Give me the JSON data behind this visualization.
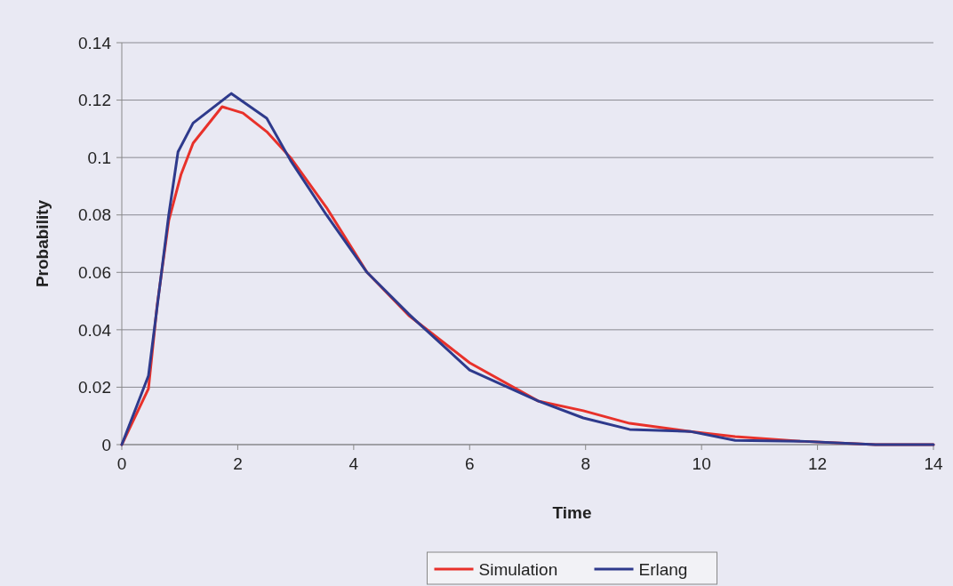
{
  "chart_data": {
    "type": "line",
    "xlabel": "Time",
    "ylabel": "Probability",
    "xlim": [
      0,
      14
    ],
    "ylim": [
      0,
      0.14
    ],
    "xticks": [
      0,
      2,
      4,
      6,
      8,
      10,
      12,
      14
    ],
    "yticks": [
      0,
      0.02,
      0.04,
      0.06,
      0.08,
      0.1,
      0.12,
      0.14
    ],
    "grid": "y",
    "legend": "bottom",
    "marker": "none",
    "line_style": "solid",
    "series": [
      {
        "name": "Simulation",
        "color": "#e8312a",
        "x": [
          0,
          0.46,
          0.61,
          0.81,
          1.02,
          1.23,
          1.73,
          2.09,
          2.5,
          2.91,
          3.53,
          4.23,
          4.95,
          6.0,
          7.18,
          7.96,
          8.76,
          9.8,
          10.58,
          11.7,
          13,
          14
        ],
        "values": [
          0,
          0.0195,
          0.0486,
          0.078,
          0.094,
          0.105,
          0.1177,
          0.1155,
          0.109,
          0.1,
          0.0826,
          0.06,
          0.045,
          0.0285,
          0.0152,
          0.0118,
          0.0074,
          0.0046,
          0.0028,
          0.0012,
          0,
          0
        ]
      },
      {
        "name": "Erlang",
        "color": "#2e3a8c",
        "x": [
          0,
          0.46,
          0.81,
          0.97,
          1.23,
          1.89,
          2.5,
          2.91,
          3.53,
          4.23,
          4.95,
          5.08,
          6.0,
          7.18,
          7.96,
          8.76,
          9.8,
          10.58,
          11.7,
          13,
          14
        ],
        "values": [
          0,
          0.024,
          0.08,
          0.102,
          0.112,
          0.1223,
          0.1137,
          0.099,
          0.08,
          0.06,
          0.0455,
          0.043,
          0.026,
          0.0152,
          0.0093,
          0.0053,
          0.0046,
          0.0015,
          0.0012,
          0,
          0
        ]
      }
    ]
  }
}
